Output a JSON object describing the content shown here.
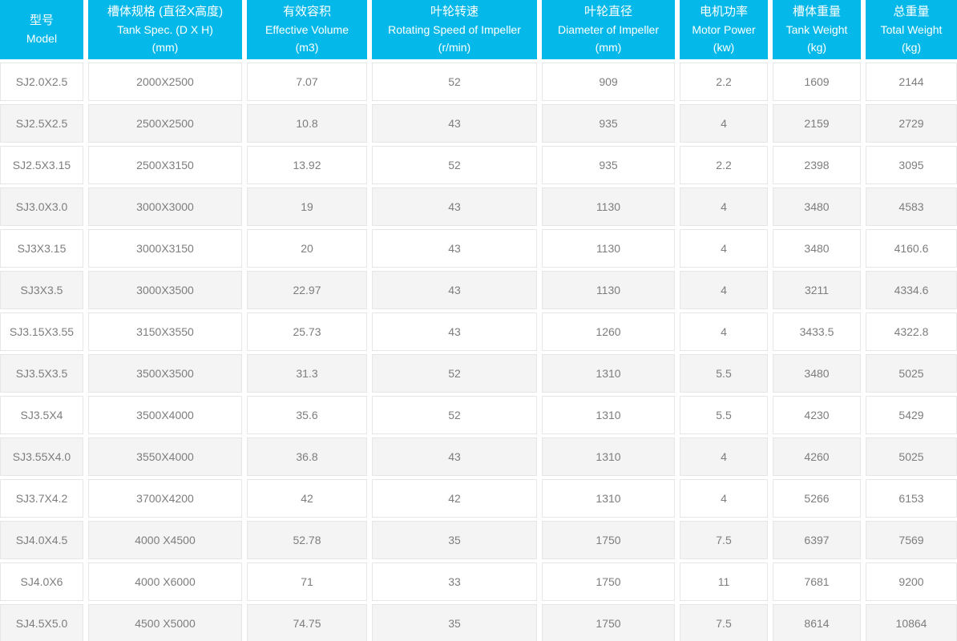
{
  "table": {
    "columns": [
      {
        "zh": "型号",
        "en": "Model",
        "unit": ""
      },
      {
        "zh": "槽体规格 (直径X高度)",
        "en": "Tank Spec. (D X H)",
        "unit": "(mm)"
      },
      {
        "zh": "有效容积",
        "en": "Effective Volume",
        "unit": "(m3)"
      },
      {
        "zh": "叶轮转速",
        "en": "Rotating Speed of Impeller",
        "unit": "(r/min)"
      },
      {
        "zh": "叶轮直径",
        "en": "Diameter of Impeller",
        "unit": "(mm)"
      },
      {
        "zh": "电机功率",
        "en": "Motor Power",
        "unit": "(kw)"
      },
      {
        "zh": "槽体重量",
        "en": "Tank Weight",
        "unit": "(kg)"
      },
      {
        "zh": "总重量",
        "en": "Total Weight",
        "unit": "(kg)"
      }
    ],
    "rows": [
      [
        "SJ2.0X2.5",
        "2000X2500",
        "7.07",
        "52",
        "909",
        "2.2",
        "1609",
        "2144"
      ],
      [
        "SJ2.5X2.5",
        "2500X2500",
        "10.8",
        "43",
        "935",
        "4",
        "2159",
        "2729"
      ],
      [
        "SJ2.5X3.15",
        "2500X3150",
        "13.92",
        "52",
        "935",
        "2.2",
        "2398",
        "3095"
      ],
      [
        "SJ3.0X3.0",
        "3000X3000",
        "19",
        "43",
        "1130",
        "4",
        "3480",
        "4583"
      ],
      [
        "SJ3X3.15",
        "3000X3150",
        "20",
        "43",
        "1130",
        "4",
        "3480",
        "4160.6"
      ],
      [
        "SJ3X3.5",
        "3000X3500",
        "22.97",
        "43",
        "1130",
        "4",
        "3211",
        "4334.6"
      ],
      [
        "SJ3.15X3.55",
        "3150X3550",
        "25.73",
        "43",
        "1260",
        "4",
        "3433.5",
        "4322.8"
      ],
      [
        "SJ3.5X3.5",
        "3500X3500",
        "31.3",
        "52",
        "1310",
        "5.5",
        "3480",
        "5025"
      ],
      [
        "SJ3.5X4",
        "3500X4000",
        "35.6",
        "52",
        "1310",
        "5.5",
        "4230",
        "5429"
      ],
      [
        "SJ3.55X4.0",
        "3550X4000",
        "36.8",
        "43",
        "1310",
        "4",
        "4260",
        "5025"
      ],
      [
        "SJ3.7X4.2",
        "3700X4200",
        "42",
        "42",
        "1310",
        "4",
        "5266",
        "6153"
      ],
      [
        "SJ4.0X4.5",
        "4000 X4500",
        "52.78",
        "35",
        "1750",
        "7.5",
        "6397",
        "7569"
      ],
      [
        "SJ4.0X6",
        "4000 X6000",
        "71",
        "33",
        "1750",
        "11",
        "7681",
        "9200"
      ],
      [
        "SJ4.5X5.0",
        "4500 X5000",
        "74.75",
        "35",
        "1750",
        "7.5",
        "8614",
        "10864"
      ]
    ]
  },
  "colors": {
    "header_bg": "#04b9e9",
    "header_text": "#ffffff",
    "row_alt_bg": "#f4f4f4",
    "cell_border": "#e6e6e6",
    "cell_text": "#7d7d7d"
  }
}
